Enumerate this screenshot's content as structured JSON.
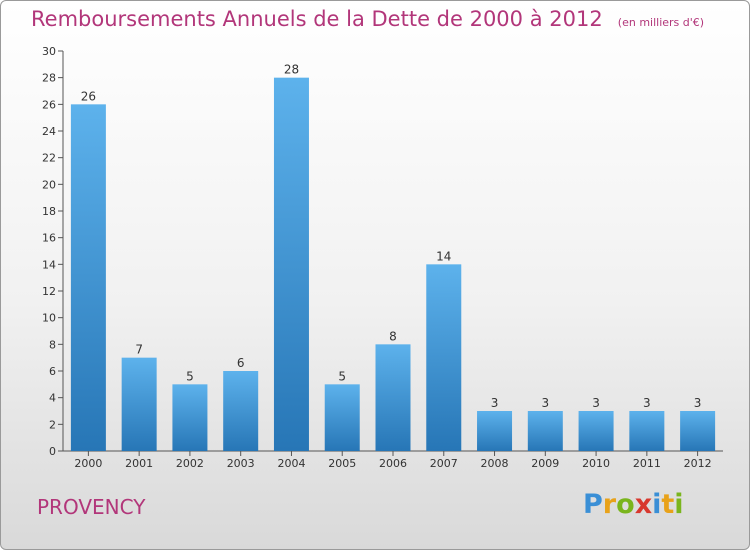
{
  "header": {
    "title": "Remboursements Annuels de la Dette de 2000 à 2012",
    "unit": "(en milliers d'€)"
  },
  "footer": {
    "place": "PROVENCY",
    "brand": "Proxiti"
  },
  "colors": {
    "title": "#b2367a",
    "bar_top": "#5aaee8",
    "bar_bottom": "#2a78b8",
    "grid": "#cccccc"
  },
  "chart_data": {
    "type": "bar",
    "categories": [
      "2000",
      "2001",
      "2002",
      "2003",
      "2004",
      "2005",
      "2006",
      "2007",
      "2008",
      "2009",
      "2010",
      "2011",
      "2012"
    ],
    "values": [
      26,
      7,
      5,
      6,
      28,
      5,
      8,
      14,
      3,
      3,
      3,
      3,
      3
    ],
    "ylim": [
      0,
      30
    ],
    "yticks": [
      0,
      2,
      4,
      6,
      8,
      10,
      12,
      14,
      16,
      18,
      20,
      22,
      24,
      26,
      28,
      30
    ],
    "grid": false
  }
}
